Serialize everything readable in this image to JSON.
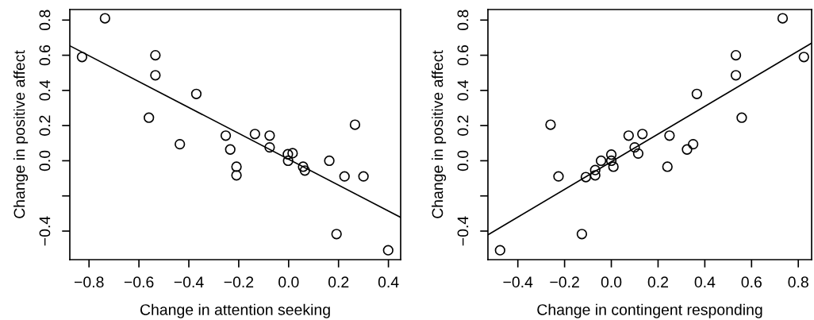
{
  "chart_data": [
    {
      "type": "scatter",
      "xlabel": "Change in attention seeking",
      "ylabel": "Change in positive affect",
      "marker": "circle",
      "grid": false,
      "legend": false,
      "xlim": [
        -0.877,
        0.449
      ],
      "ylim": [
        -0.5625,
        0.86
      ],
      "xticks": [
        {
          "value": -0.8,
          "label": "−0.8"
        },
        {
          "value": -0.6,
          "label": "−0.6"
        },
        {
          "value": -0.4,
          "label": "−0.4"
        },
        {
          "value": -0.2,
          "label": "−0.2"
        },
        {
          "value": 0.0,
          "label": "0.0"
        },
        0.2,
        0.4
      ],
      "yticks": [
        {
          "value": -0.4,
          "label": "−0.4"
        },
        {
          "value": -0.2,
          "label": null
        },
        {
          "value": 0.0,
          "label": "0.0"
        },
        0.2,
        0.4,
        0.6,
        0.8
      ],
      "series": [
        {
          "color": "#000000",
          "x": [
            -0.828,
            -0.736,
            -0.534,
            -0.534,
            -0.37,
            -0.56,
            -0.436,
            -0.252,
            -0.234,
            -0.209,
            -0.209,
            -0.135,
            -0.076,
            -0.076,
            -0.003,
            0.016,
            -0.002,
            0.058,
            0.065,
            0.163,
            0.266,
            0.224,
            0.3,
            0.192,
            0.399
          ],
          "values": [
            0.59,
            0.81,
            0.6,
            0.486,
            0.38,
            0.245,
            0.094,
            0.143,
            0.064,
            -0.034,
            -0.083,
            0.152,
            0.143,
            0.076,
            0.037,
            0.043,
            0.0,
            -0.034,
            -0.056,
            0.0,
            0.205,
            -0.089,
            -0.089,
            -0.417,
            -0.509
          ]
        },
        {
          "type": "line",
          "marker": "none",
          "color": "#000000",
          "x": [
            -0.877,
            0.449
          ],
          "values": [
            0.654,
            -0.322
          ]
        }
      ]
    },
    {
      "type": "scatter",
      "xlabel": "Change in contingent responding",
      "ylabel": "Change in positive affect",
      "marker": "circle",
      "grid": false,
      "legend": false,
      "xlim": [
        -0.528,
        0.857
      ],
      "ylim": [
        -0.5625,
        0.86
      ],
      "xticks": [
        {
          "value": -0.4,
          "label": "−0.4"
        },
        {
          "value": -0.2,
          "label": "−0.2"
        },
        {
          "value": 0.0,
          "label": "0.0"
        },
        0.2,
        0.4,
        0.6,
        0.8
      ],
      "yticks": [
        {
          "value": -0.4,
          "label": "−0.4"
        },
        {
          "value": -0.2,
          "label": null
        },
        {
          "value": 0.0,
          "label": "0.0"
        },
        0.2,
        0.4,
        0.6,
        0.8
      ],
      "series": [
        {
          "color": "#000000",
          "x": [
            0.733,
            0.824,
            0.533,
            0.533,
            0.366,
            0.558,
            -0.26,
            0.074,
            0.133,
            0.249,
            0.1,
            0.115,
            0.35,
            0.324,
            0.24,
            0.0,
            0.0,
            -0.044,
            0.009,
            -0.069,
            -0.069,
            -0.109,
            -0.226,
            -0.126,
            -0.476
          ],
          "values": [
            0.81,
            0.59,
            0.6,
            0.486,
            0.38,
            0.245,
            0.205,
            0.143,
            0.152,
            0.143,
            0.076,
            0.041,
            0.094,
            0.064,
            -0.034,
            0.035,
            0.0,
            0.0,
            -0.034,
            -0.053,
            -0.083,
            -0.093,
            -0.089,
            -0.417,
            -0.509
          ]
        },
        {
          "type": "line",
          "marker": "none",
          "color": "#000000",
          "x": [
            -0.528,
            0.857
          ],
          "values": [
            -0.421,
            0.669
          ]
        }
      ]
    }
  ]
}
